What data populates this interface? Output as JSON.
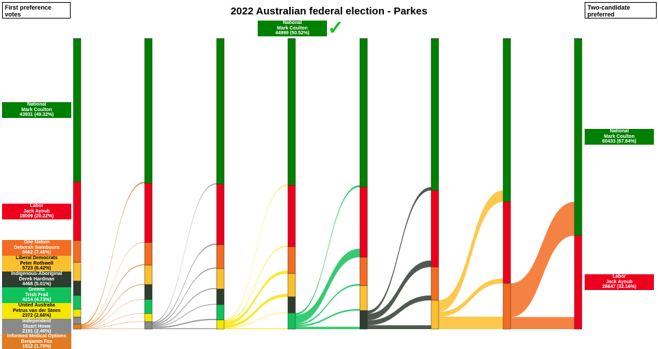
{
  "title": "2022 Australian federal election - Parkes",
  "left_header": "First preference votes",
  "right_header": "Two-candidate preferred",
  "winner": {
    "party": "National",
    "name": "Mark Coulton",
    "votes": "44999 (50.52%)",
    "icon": "check-icon"
  },
  "candidates": [
    {
      "party": "National",
      "name": "Mark Coulton",
      "votes": "43931 (49.32%)",
      "color": "#008000",
      "dark": false
    },
    {
      "party": "Labor",
      "name": "Jack Ayoub",
      "votes": "18009 (20.22%)",
      "color": "#ee001c",
      "dark": false
    },
    {
      "party": "One Nation",
      "name": "Deborah Swinbourn",
      "votes": "6662 (7.48%)",
      "color": "#f36c21",
      "dark": false
    },
    {
      "party": "Liberal Democrats",
      "name": "Peter Rothwell",
      "votes": "5723 (6.42%)",
      "color": "#fbc02d",
      "dark": true
    },
    {
      "party": "Indigenous-Aboriginal",
      "name": "Derek Hardman",
      "votes": "4468 (5.01%)",
      "color": "#2f3d30",
      "dark": false
    },
    {
      "party": "Greens",
      "name": "Trish Frail",
      "votes": "4214 (4.73%)",
      "color": "#10c25b",
      "dark": false
    },
    {
      "party": "United Australia",
      "name": "Petrus van der Steen",
      "votes": "2372 (2.66%)",
      "color": "#f5e600",
      "dark": true
    },
    {
      "party": "Independent",
      "name": "Stuart Howe",
      "votes": "2191 (2.46%)",
      "color": "#8a8a8a",
      "dark": false
    },
    {
      "party": "Informed Medical Options",
      "name": "Benjamin Fox",
      "votes": "1512 (1.70%)",
      "color": "#e07b20",
      "dark": false
    }
  ],
  "tcp": [
    {
      "party": "National",
      "name": "Mark Coulton",
      "votes": "60433 (67.84%)"
    },
    {
      "party": "Labor",
      "name": "Jack Ayoub",
      "votes": "28647 (32.16%)"
    }
  ],
  "chart_data": {
    "type": "sankey",
    "rounds": [
      [
        43931,
        18009,
        6662,
        5723,
        4468,
        4214,
        2372,
        2191,
        1512
      ],
      [
        44381,
        18159,
        6962,
        5923,
        4568,
        4314,
        2492,
        2283
      ],
      [
        44700,
        18550,
        7300,
        6250,
        4800,
        4700,
        2782
      ],
      [
        44999,
        18850,
        8200,
        7150,
        4950,
        4933
      ],
      [
        45599,
        21450,
        8700,
        7650,
        5683
      ],
      [
        46599,
        23450,
        10200,
        8833
      ],
      [
        50099,
        24950,
        14033
      ],
      [
        60433,
        28647
      ]
    ]
  }
}
